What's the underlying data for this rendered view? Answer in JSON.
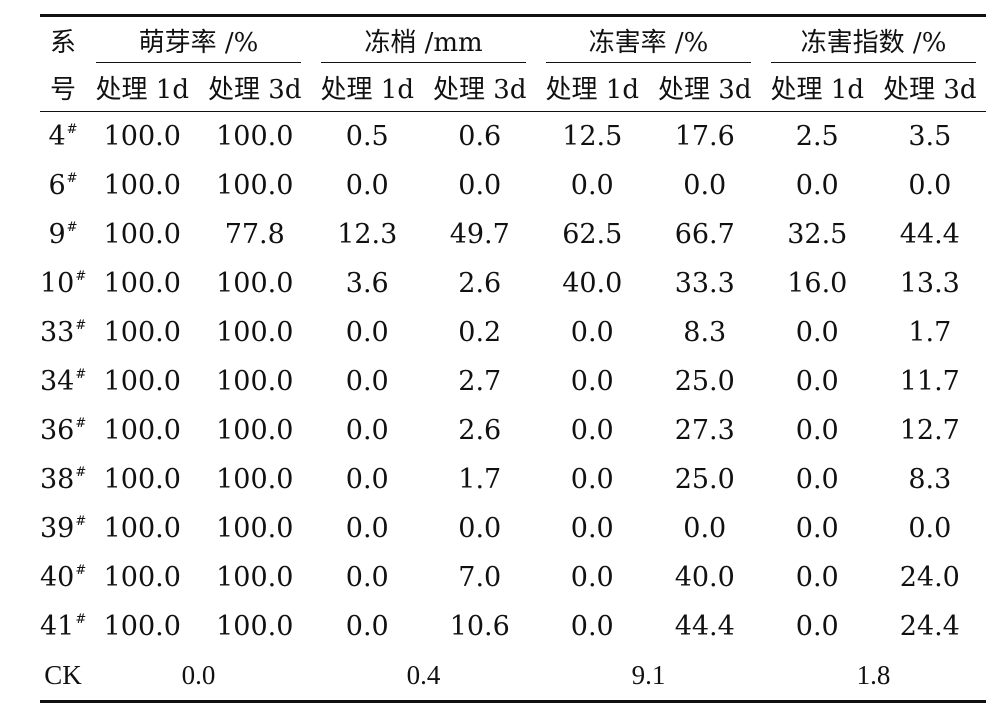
{
  "header": {
    "row_label_top": "系",
    "row_label_bottom": "号",
    "groups": [
      "萌芽率 /%",
      "冻梢 /mm",
      "冻害率 /%",
      "冻害指数 /%"
    ],
    "sub": [
      "处理 1d",
      "处理 3d"
    ]
  },
  "rows": [
    {
      "id": "4",
      "sup": "#",
      "v": [
        "100.0",
        "100.0",
        "0.5",
        "0.6",
        "12.5",
        "17.6",
        "2.5",
        "3.5"
      ]
    },
    {
      "id": "6",
      "sup": "#",
      "v": [
        "100.0",
        "100.0",
        "0.0",
        "0.0",
        "0.0",
        "0.0",
        "0.0",
        "0.0"
      ]
    },
    {
      "id": "9",
      "sup": "#",
      "v": [
        "100.0",
        "77.8",
        "12.3",
        "49.7",
        "62.5",
        "66.7",
        "32.5",
        "44.4"
      ]
    },
    {
      "id": "10",
      "sup": "#",
      "v": [
        "100.0",
        "100.0",
        "3.6",
        "2.6",
        "40.0",
        "33.3",
        "16.0",
        "13.3"
      ]
    },
    {
      "id": "33",
      "sup": "#",
      "v": [
        "100.0",
        "100.0",
        "0.0",
        "0.2",
        "0.0",
        "8.3",
        "0.0",
        "1.7"
      ]
    },
    {
      "id": "34",
      "sup": "#",
      "v": [
        "100.0",
        "100.0",
        "0.0",
        "2.7",
        "0.0",
        "25.0",
        "0.0",
        "11.7"
      ]
    },
    {
      "id": "36",
      "sup": "#",
      "v": [
        "100.0",
        "100.0",
        "0.0",
        "2.6",
        "0.0",
        "27.3",
        "0.0",
        "12.7"
      ]
    },
    {
      "id": "38",
      "sup": "#",
      "v": [
        "100.0",
        "100.0",
        "0.0",
        "1.7",
        "0.0",
        "25.0",
        "0.0",
        "8.3"
      ]
    },
    {
      "id": "39",
      "sup": "#",
      "v": [
        "100.0",
        "100.0",
        "0.0",
        "0.0",
        "0.0",
        "0.0",
        "0.0",
        "0.0"
      ]
    },
    {
      "id": "40",
      "sup": "#",
      "v": [
        "100.0",
        "100.0",
        "0.0",
        "7.0",
        "0.0",
        "40.0",
        "0.0",
        "24.0"
      ]
    },
    {
      "id": "41",
      "sup": "#",
      "v": [
        "100.0",
        "100.0",
        "0.0",
        "10.6",
        "0.0",
        "44.4",
        "0.0",
        "24.4"
      ]
    }
  ],
  "ck": {
    "id": "CK",
    "v": [
      "0.0",
      "0.4",
      "9.1",
      "1.8"
    ]
  }
}
